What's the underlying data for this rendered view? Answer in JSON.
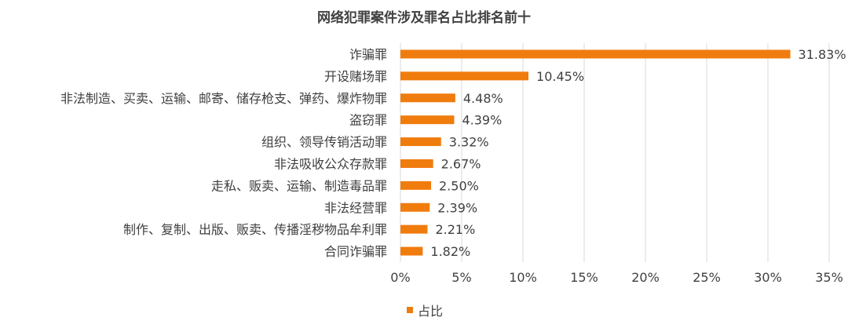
{
  "chart_data": {
    "type": "bar",
    "orientation": "horizontal",
    "title": "网络犯罪案件涉及罪名占比排名前十",
    "categories": [
      "诈骗罪",
      "开设赌场罪",
      "非法制造、买卖、运输、邮寄、储存枪支、弹药、爆炸物罪",
      "盗窃罪",
      "组织、领导传销活动罪",
      "非法吸收公众存款罪",
      "走私、贩卖、运输、制造毒品罪",
      "非法经营罪",
      "制作、复制、出版、贩卖、传播淫秽物品牟利罪",
      "合同诈骗罪"
    ],
    "series": [
      {
        "name": "占比",
        "values": [
          31.83,
          10.45,
          4.48,
          4.39,
          3.32,
          2.67,
          2.5,
          2.39,
          2.21,
          1.82
        ],
        "data_labels": [
          "31.83%",
          "10.45%",
          "4.48%",
          "4.39%",
          "3.32%",
          "2.67%",
          "2.50%",
          "2.39%",
          "2.21%",
          "1.82%"
        ]
      }
    ],
    "xlim": [
      0,
      35
    ],
    "x_ticks": [
      "0%",
      "5%",
      "10%",
      "15%",
      "20%",
      "25%",
      "30%",
      "35%"
    ],
    "grid": "vertical",
    "legend": "bottom",
    "bar_color": "#F07C0E",
    "grid_color": "#D9D9D9"
  }
}
